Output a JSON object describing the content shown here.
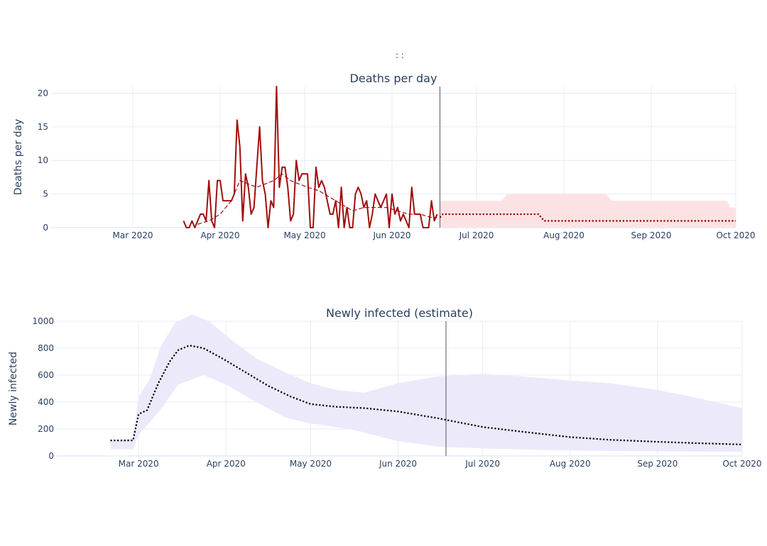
{
  "header": {
    "marks": ":        :"
  },
  "chart_data": [
    {
      "type": "line",
      "title": "Deaths per day",
      "xlabel": "",
      "ylabel": "Deaths per day",
      "xlim": [
        "2020-02-01",
        "2020-10-01"
      ],
      "ylim": [
        0,
        21
      ],
      "yticks": [
        0,
        5,
        10,
        15,
        20
      ],
      "xticks": [
        {
          "date": "2020-03-01",
          "label": "Mar 2020"
        },
        {
          "date": "2020-04-01",
          "label": "Apr 2020"
        },
        {
          "date": "2020-05-01",
          "label": "May 2020"
        },
        {
          "date": "2020-06-01",
          "label": "Jun 2020"
        },
        {
          "date": "2020-07-01",
          "label": "Jul 2020"
        },
        {
          "date": "2020-08-01",
          "label": "Aug 2020"
        },
        {
          "date": "2020-09-01",
          "label": "Sep 2020"
        },
        {
          "date": "2020-10-01",
          "label": "Oct 2020"
        }
      ],
      "vline_date": "2020-06-18",
      "grid": true,
      "legend": "none",
      "series": [
        {
          "style": "solid",
          "color": "#a00d0d",
          "points": [
            [
              "2020-03-19",
              1
            ],
            [
              "2020-03-20",
              0
            ],
            [
              "2020-03-21",
              0
            ],
            [
              "2020-03-22",
              1
            ],
            [
              "2020-03-23",
              0
            ],
            [
              "2020-03-24",
              1
            ],
            [
              "2020-03-25",
              2
            ],
            [
              "2020-03-26",
              2
            ],
            [
              "2020-03-27",
              1
            ],
            [
              "2020-03-28",
              7
            ],
            [
              "2020-03-29",
              1
            ],
            [
              "2020-03-30",
              0
            ],
            [
              "2020-03-31",
              7
            ],
            [
              "2020-04-01",
              7
            ],
            [
              "2020-04-02",
              4
            ],
            [
              "2020-04-03",
              4
            ],
            [
              "2020-04-04",
              4
            ],
            [
              "2020-04-05",
              4
            ],
            [
              "2020-04-06",
              5
            ],
            [
              "2020-04-07",
              16
            ],
            [
              "2020-04-08",
              12
            ],
            [
              "2020-04-09",
              1
            ],
            [
              "2020-04-10",
              8
            ],
            [
              "2020-04-11",
              6
            ],
            [
              "2020-04-12",
              2
            ],
            [
              "2020-04-13",
              3
            ],
            [
              "2020-04-14",
              9
            ],
            [
              "2020-04-15",
              15
            ],
            [
              "2020-04-16",
              7
            ],
            [
              "2020-04-17",
              5
            ],
            [
              "2020-04-18",
              0
            ],
            [
              "2020-04-19",
              4
            ],
            [
              "2020-04-20",
              3
            ],
            [
              "2020-04-21",
              21
            ],
            [
              "2020-04-22",
              6
            ],
            [
              "2020-04-23",
              9
            ],
            [
              "2020-04-24",
              9
            ],
            [
              "2020-04-25",
              6
            ],
            [
              "2020-04-26",
              1
            ],
            [
              "2020-04-27",
              2
            ],
            [
              "2020-04-28",
              10
            ],
            [
              "2020-04-29",
              7
            ],
            [
              "2020-04-30",
              8
            ],
            [
              "2020-05-01",
              8
            ],
            [
              "2020-05-02",
              8
            ],
            [
              "2020-05-03",
              0
            ],
            [
              "2020-05-04",
              0
            ],
            [
              "2020-05-05",
              9
            ],
            [
              "2020-05-06",
              6
            ],
            [
              "2020-05-07",
              7
            ],
            [
              "2020-05-08",
              6
            ],
            [
              "2020-05-09",
              4
            ],
            [
              "2020-05-10",
              2
            ],
            [
              "2020-05-11",
              2
            ],
            [
              "2020-05-12",
              4
            ],
            [
              "2020-05-13",
              0
            ],
            [
              "2020-05-14",
              6
            ],
            [
              "2020-05-15",
              0
            ],
            [
              "2020-05-16",
              3
            ],
            [
              "2020-05-17",
              0
            ],
            [
              "2020-05-18",
              0
            ],
            [
              "2020-05-19",
              5
            ],
            [
              "2020-05-20",
              6
            ],
            [
              "2020-05-21",
              5
            ],
            [
              "2020-05-22",
              3
            ],
            [
              "2020-05-23",
              4
            ],
            [
              "2020-05-24",
              0
            ],
            [
              "2020-05-25",
              2
            ],
            [
              "2020-05-26",
              5
            ],
            [
              "2020-05-27",
              4
            ],
            [
              "2020-05-28",
              3
            ],
            [
              "2020-05-29",
              4
            ],
            [
              "2020-05-30",
              5
            ],
            [
              "2020-05-31",
              0
            ],
            [
              "2020-06-01",
              5
            ],
            [
              "2020-06-02",
              2
            ],
            [
              "2020-06-03",
              3
            ],
            [
              "2020-06-04",
              1
            ],
            [
              "2020-06-05",
              2
            ],
            [
              "2020-06-06",
              1
            ],
            [
              "2020-06-07",
              0
            ],
            [
              "2020-06-08",
              6
            ],
            [
              "2020-06-09",
              2
            ],
            [
              "2020-06-10",
              2
            ],
            [
              "2020-06-11",
              2
            ],
            [
              "2020-06-12",
              0
            ],
            [
              "2020-06-13",
              0
            ],
            [
              "2020-06-14",
              0
            ],
            [
              "2020-06-15",
              4
            ],
            [
              "2020-06-16",
              1
            ],
            [
              "2020-06-17",
              2
            ]
          ]
        },
        {
          "style": "dashed",
          "color": "#a00d0d",
          "points": [
            [
              "2020-03-24",
              0.5
            ],
            [
              "2020-03-28",
              1
            ],
            [
              "2020-04-01",
              2
            ],
            [
              "2020-04-05",
              4
            ],
            [
              "2020-04-08",
              7
            ],
            [
              "2020-04-11",
              6.5
            ],
            [
              "2020-04-14",
              6
            ],
            [
              "2020-04-17",
              6.5
            ],
            [
              "2020-04-20",
              7
            ],
            [
              "2020-04-23",
              8
            ],
            [
              "2020-04-26",
              7
            ],
            [
              "2020-04-29",
              6.5
            ],
            [
              "2020-05-02",
              6
            ],
            [
              "2020-05-06",
              5.5
            ],
            [
              "2020-05-10",
              4.5
            ],
            [
              "2020-05-14",
              3.5
            ],
            [
              "2020-05-18",
              2.5
            ],
            [
              "2020-05-22",
              3
            ],
            [
              "2020-05-26",
              3
            ],
            [
              "2020-05-30",
              3
            ],
            [
              "2020-06-03",
              2.5
            ],
            [
              "2020-06-07",
              2
            ],
            [
              "2020-06-11",
              2
            ],
            [
              "2020-06-15",
              1.5
            ],
            [
              "2020-06-17",
              1.5
            ]
          ]
        },
        {
          "style": "dotted",
          "color": "#8b0000",
          "points": [
            [
              "2020-06-18",
              1.5
            ],
            [
              "2020-06-19",
              2
            ],
            [
              "2020-07-23",
              2
            ],
            [
              "2020-07-25",
              1
            ],
            [
              "2020-10-01",
              1
            ]
          ]
        }
      ],
      "bands": [
        {
          "color": "#fde2e4",
          "upper": [
            [
              "2020-06-18",
              4
            ],
            [
              "2020-07-10",
              4
            ],
            [
              "2020-07-12",
              5
            ],
            [
              "2020-08-16",
              5
            ],
            [
              "2020-08-18",
              4
            ],
            [
              "2020-09-28",
              4
            ],
            [
              "2020-09-29",
              3
            ],
            [
              "2020-10-01",
              3
            ]
          ],
          "lower": [
            [
              "2020-06-18",
              0
            ],
            [
              "2020-10-01",
              0
            ]
          ]
        }
      ]
    },
    {
      "type": "line",
      "title": "Newly infected (estimate)",
      "xlabel": "",
      "ylabel": "Newly infected",
      "xlim": [
        "2020-02-01",
        "2020-10-01"
      ],
      "ylim": [
        0,
        1000
      ],
      "yticks": [
        0,
        200,
        400,
        600,
        800,
        1000
      ],
      "xticks": [
        {
          "date": "2020-03-01",
          "label": "Mar 2020"
        },
        {
          "date": "2020-04-01",
          "label": "Apr 2020"
        },
        {
          "date": "2020-05-01",
          "label": "May 2020"
        },
        {
          "date": "2020-06-01",
          "label": "Jun 2020"
        },
        {
          "date": "2020-07-01",
          "label": "Jul 2020"
        },
        {
          "date": "2020-08-01",
          "label": "Aug 2020"
        },
        {
          "date": "2020-09-01",
          "label": "Sep 2020"
        },
        {
          "date": "2020-10-01",
          "label": "Oct 2020"
        }
      ],
      "vline_date": "2020-06-18",
      "grid": true,
      "legend": "none",
      "series": [
        {
          "style": "dotted",
          "color": "#000000",
          "points": [
            [
              "2020-02-20",
              115
            ],
            [
              "2020-02-28",
              115
            ],
            [
              "2020-03-01",
              310
            ],
            [
              "2020-03-04",
              340
            ],
            [
              "2020-03-08",
              540
            ],
            [
              "2020-03-12",
              700
            ],
            [
              "2020-03-15",
              785
            ],
            [
              "2020-03-19",
              820
            ],
            [
              "2020-03-24",
              800
            ],
            [
              "2020-03-31",
              720
            ],
            [
              "2020-04-08",
              620
            ],
            [
              "2020-04-16",
              520
            ],
            [
              "2020-04-24",
              440
            ],
            [
              "2020-05-01",
              385
            ],
            [
              "2020-05-10",
              365
            ],
            [
              "2020-05-20",
              355
            ],
            [
              "2020-06-01",
              330
            ],
            [
              "2020-06-15",
              280
            ],
            [
              "2020-07-01",
              215
            ],
            [
              "2020-07-15",
              180
            ],
            [
              "2020-08-01",
              140
            ],
            [
              "2020-08-15",
              120
            ],
            [
              "2020-09-01",
              105
            ],
            [
              "2020-09-15",
              95
            ],
            [
              "2020-10-01",
              85
            ]
          ]
        }
      ],
      "bands": [
        {
          "color": "#ece9fb",
          "upper": [
            [
              "2020-02-28",
              130
            ],
            [
              "2020-03-01",
              440
            ],
            [
              "2020-03-05",
              570
            ],
            [
              "2020-03-09",
              820
            ],
            [
              "2020-03-14",
              990
            ],
            [
              "2020-03-20",
              1050
            ],
            [
              "2020-03-26",
              1000
            ],
            [
              "2020-04-03",
              860
            ],
            [
              "2020-04-12",
              720
            ],
            [
              "2020-04-22",
              620
            ],
            [
              "2020-05-01",
              540
            ],
            [
              "2020-05-10",
              490
            ],
            [
              "2020-05-20",
              470
            ],
            [
              "2020-06-01",
              540
            ],
            [
              "2020-06-15",
              590
            ],
            [
              "2020-07-01",
              610
            ],
            [
              "2020-07-15",
              590
            ],
            [
              "2020-08-01",
              560
            ],
            [
              "2020-08-15",
              540
            ],
            [
              "2020-09-01",
              490
            ],
            [
              "2020-09-15",
              430
            ],
            [
              "2020-10-01",
              355
            ]
          ],
          "lower": [
            [
              "2020-10-01",
              30
            ],
            [
              "2020-09-01",
              35
            ],
            [
              "2020-08-01",
              40
            ],
            [
              "2020-07-01",
              55
            ],
            [
              "2020-06-15",
              70
            ],
            [
              "2020-06-01",
              110
            ],
            [
              "2020-05-15",
              200
            ],
            [
              "2020-05-01",
              240
            ],
            [
              "2020-04-22",
              285
            ],
            [
              "2020-04-10",
              420
            ],
            [
              "2020-04-01",
              530
            ],
            [
              "2020-03-24",
              600
            ],
            [
              "2020-03-15",
              530
            ],
            [
              "2020-03-09",
              350
            ],
            [
              "2020-03-05",
              250
            ],
            [
              "2020-03-01",
              160
            ],
            [
              "2020-02-28",
              50
            ],
            [
              "2020-02-20",
              50
            ],
            [
              "2020-02-20",
              110
            ]
          ]
        }
      ]
    }
  ]
}
